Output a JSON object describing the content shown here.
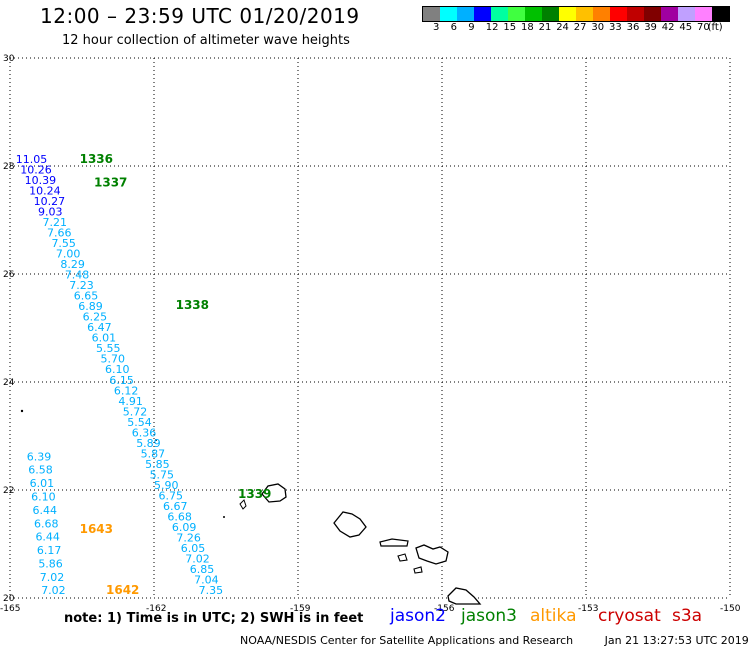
{
  "title": "12:00 – 23:59 UTC 01/20/2019",
  "subtitle": "12 hour collection of altimeter wave heights",
  "legend": {
    "colors": [
      "#808080",
      "#00ffff",
      "#00b0ff",
      "#0000ff",
      "#00ffa0",
      "#40ff40",
      "#00c000",
      "#008000",
      "#ffff00",
      "#ffc000",
      "#ff8000",
      "#ff0000",
      "#c00000",
      "#800000",
      "#a000a0",
      "#c0a0ff",
      "#ff80ff",
      "#000000"
    ],
    "labels": [
      "3",
      "6",
      "9",
      "12",
      "15",
      "18",
      "21",
      "24",
      "27",
      "30",
      "33",
      "36",
      "39",
      "42",
      "45",
      "70",
      "(ft)"
    ]
  },
  "axes": {
    "lon_ticks": [
      "-165",
      "-162",
      "-159",
      "-156",
      "-153",
      "-150"
    ],
    "lat_ticks": [
      "30",
      "28",
      "26",
      "24",
      "22",
      "20"
    ]
  },
  "pass_labels": [
    {
      "text": "1336",
      "color": "#008000",
      "lon": -163.55,
      "lat": 28.06
    },
    {
      "text": "1337",
      "color": "#008000",
      "lon": -163.25,
      "lat": 27.62
    },
    {
      "text": "1338",
      "color": "#008000",
      "lon": -161.55,
      "lat": 25.35
    },
    {
      "text": "1339",
      "color": "#008000",
      "lon": -160.25,
      "lat": 21.85
    },
    {
      "text": "1643",
      "color": "#ff9900",
      "lon": -163.55,
      "lat": 21.2
    },
    {
      "text": "1642",
      "color": "#ff9900",
      "lon": -163.0,
      "lat": 20.07
    }
  ],
  "track_main": {
    "start": {
      "lon": -164.88,
      "lat": 28.06
    },
    "end": {
      "lon": -161.07,
      "lat": 20.07
    },
    "values": [
      "11.05",
      "10.26",
      "10.39",
      "10.24",
      "10.27",
      "9.03",
      "7.21",
      "7.66",
      "7.55",
      "7.00",
      "8.29",
      "7.48",
      "7.23",
      "6.65",
      "6.89",
      "6.25",
      "6.47",
      "6.01",
      "5.55",
      "5.70",
      "6.10",
      "6.15",
      "6.12",
      "4.91",
      "5.72",
      "5.54",
      "6.36",
      "5.89",
      "5.87",
      "5.85",
      "5.75",
      "5.90",
      "6.75",
      "6.67",
      "6.68",
      "6.09",
      "7.26",
      "6.05",
      "7.02",
      "6.85",
      "7.04",
      "7.35"
    ],
    "colors": [
      "#0000ff",
      "#0000ff",
      "#0000ff",
      "#0000ff",
      "#0000ff",
      "#0000ff",
      "#00b0ff",
      "#00b0ff",
      "#00b0ff",
      "#00b0ff",
      "#00b0ff",
      "#00b0ff",
      "#00b0ff",
      "#00b0ff",
      "#00b0ff",
      "#00b0ff",
      "#00b0ff",
      "#00b0ff",
      "#00b0ff",
      "#00b0ff",
      "#00b0ff",
      "#00b0ff",
      "#00b0ff",
      "#00b0ff",
      "#00b0ff",
      "#00b0ff",
      "#00b0ff",
      "#00b0ff",
      "#00b0ff",
      "#00b0ff",
      "#00b0ff",
      "#00b0ff",
      "#00b0ff",
      "#00b0ff",
      "#00b0ff",
      "#00b0ff",
      "#00b0ff",
      "#00b0ff",
      "#00b0ff",
      "#00b0ff",
      "#00b0ff",
      "#00b0ff"
    ]
  },
  "track_left": {
    "start": {
      "lon": -164.65,
      "lat": 22.55
    },
    "end": {
      "lon": -164.35,
      "lat": 20.07
    },
    "values": [
      "6.39",
      "6.58",
      "6.01",
      "6.10",
      "6.44",
      "6.68",
      "6.44",
      "6.17",
      "5.86",
      "7.02",
      "7.02"
    ],
    "colors": [
      "#00b0ff",
      "#00b0ff",
      "#00b0ff",
      "#00b0ff",
      "#00b0ff",
      "#00b0ff",
      "#00b0ff",
      "#00b0ff",
      "#00b0ff",
      "#00b0ff",
      "#00b0ff"
    ]
  },
  "note": "note:  1) Time is in UTC;  2) SWH is in feet",
  "satellites": [
    {
      "name": "jason2",
      "color": "#0000ff"
    },
    {
      "name": "jason3",
      "color": "#008000"
    },
    {
      "name": "altika",
      "color": "#ff9900"
    },
    {
      "name": "cryosat",
      "color": "#cc0000"
    },
    {
      "name": "s3a",
      "color": "#cc0000"
    }
  ],
  "footer": {
    "credit": "NOAA/NESDIS Center for Satellite Applications and Research",
    "timestamp": "Jan 21 13:27:53 UTC 2019"
  }
}
